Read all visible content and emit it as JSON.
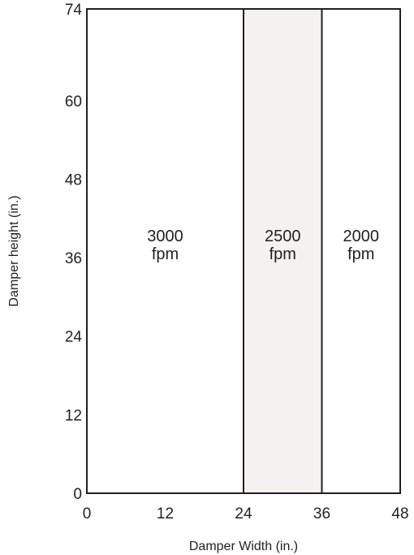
{
  "chart_data": {
    "type": "area",
    "xlabel": "Damper Width (in.)",
    "ylabel": "Damper height (in.)",
    "xlim": [
      0,
      48
    ],
    "ylim": [
      0,
      74
    ],
    "x_ticks": [
      "0",
      "12",
      "24",
      "36",
      "48"
    ],
    "y_ticks": [
      "0",
      "12",
      "24",
      "36",
      "48",
      "60",
      "74"
    ],
    "grid": false,
    "regions": [
      {
        "x_min": 0,
        "x_max": 24,
        "line1": "3000",
        "line2": "fpm",
        "fill": "#ffffff"
      },
      {
        "x_min": 24,
        "x_max": 36,
        "line1": "2500",
        "line2": "fpm",
        "fill": "#f3f2ee"
      },
      {
        "x_min": 36,
        "x_max": 48,
        "line1": "2000",
        "line2": "fpm",
        "fill": "#ffffff"
      }
    ],
    "label_y_value": 36,
    "colors": {
      "frame": "#231f20",
      "highlight": "#f3f2ee"
    }
  }
}
